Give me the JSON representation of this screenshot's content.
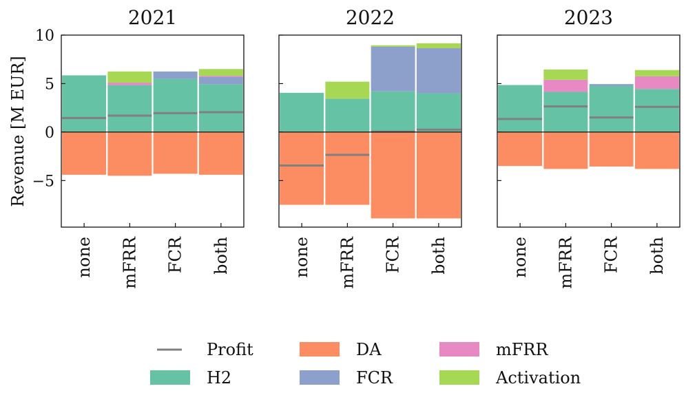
{
  "chart_data": {
    "type": "bar",
    "stacked": true,
    "ylabel": "Revenue [M EUR]",
    "ylim": [
      -9.8,
      10
    ],
    "yticks": [
      -5,
      0,
      5,
      10
    ],
    "ytick_labels": [
      "−5",
      "0",
      "5",
      "10"
    ],
    "categories": [
      "none",
      "mFRR",
      "FCR",
      "both"
    ],
    "colors": {
      "H2": "#66c2a5",
      "DA": "#fc8d62",
      "FCR": "#8da0cb",
      "mFRR": "#e78ac3",
      "Activation": "#a6d854",
      "Profit": "#808080"
    },
    "panels": [
      {
        "title": "2021",
        "series": [
          {
            "name": "H2",
            "values": [
              5.85,
              4.85,
              5.5,
              4.95
            ]
          },
          {
            "name": "FCR",
            "values": [
              0,
              0,
              0.75,
              0.75
            ]
          },
          {
            "name": "mFRR",
            "values": [
              0,
              0.25,
              0,
              0.1
            ]
          },
          {
            "name": "Activation",
            "values": [
              0,
              1.15,
              0,
              0.7
            ]
          },
          {
            "name": "DA",
            "values": [
              -4.4,
              -4.5,
              -4.3,
              -4.4
            ]
          }
        ],
        "profit": [
          1.45,
          1.7,
          1.95,
          2.05
        ]
      },
      {
        "title": "2022",
        "series": [
          {
            "name": "H2",
            "values": [
              4.05,
              3.45,
              4.2,
              4.0
            ]
          },
          {
            "name": "FCR",
            "values": [
              0,
              0,
              4.6,
              4.65
            ]
          },
          {
            "name": "mFRR",
            "values": [
              0,
              0,
              0,
              0
            ]
          },
          {
            "name": "Activation",
            "values": [
              0,
              1.75,
              0.15,
              0.5
            ]
          },
          {
            "name": "DA",
            "values": [
              -7.5,
              -7.5,
              -8.9,
              -8.9
            ]
          }
        ],
        "profit": [
          -3.45,
          -2.35,
          0.05,
          0.25
        ]
      },
      {
        "title": "2023",
        "series": [
          {
            "name": "H2",
            "values": [
              4.85,
              4.15,
              4.75,
              4.45
            ]
          },
          {
            "name": "FCR",
            "values": [
              0,
              0,
              0.2,
              0
            ]
          },
          {
            "name": "mFRR",
            "values": [
              0,
              1.25,
              0,
              1.3
            ]
          },
          {
            "name": "Activation",
            "values": [
              0,
              1.05,
              0,
              0.65
            ]
          },
          {
            "name": "DA",
            "values": [
              -3.5,
              -3.8,
              -3.55,
              -3.8
            ]
          }
        ],
        "profit": [
          1.35,
          2.65,
          1.5,
          2.6
        ]
      }
    ],
    "legend": {
      "placement": "bottom-center",
      "columns": 3,
      "entries": [
        {
          "name": "Profit",
          "marker": "line"
        },
        {
          "name": "H2",
          "marker": "patch"
        },
        {
          "name": "DA",
          "marker": "patch"
        },
        {
          "name": "FCR",
          "marker": "patch"
        },
        {
          "name": "mFRR",
          "marker": "patch"
        },
        {
          "name": "Activation",
          "marker": "patch"
        }
      ]
    },
    "grid": false
  }
}
